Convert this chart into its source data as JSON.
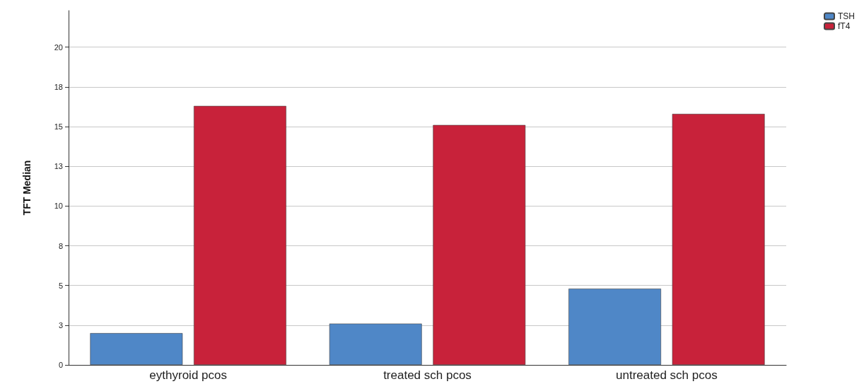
{
  "chart_data": {
    "type": "bar",
    "ylabel": "TFT Median",
    "categories": [
      "eythyroid pcos",
      "treated sch pcos",
      "untreated sch pcos"
    ],
    "series": [
      {
        "name": "TSH",
        "color": "#4f87c7",
        "values": [
          2.0,
          2.6,
          4.8
        ]
      },
      {
        "name": "fT4",
        "color": "#c8223a",
        "values": [
          16.3,
          15.1,
          15.8
        ]
      }
    ],
    "ylim": [
      0,
      22.3
    ],
    "yticks": [
      {
        "value": 0,
        "label": "0"
      },
      {
        "value": 2.5,
        "label": "3"
      },
      {
        "value": 5,
        "label": "5"
      },
      {
        "value": 7.5,
        "label": "8"
      },
      {
        "value": 10,
        "label": "10"
      },
      {
        "value": 12.5,
        "label": "13"
      },
      {
        "value": 15,
        "label": "15"
      },
      {
        "value": 17.5,
        "label": "18"
      },
      {
        "value": 20,
        "label": "20"
      }
    ],
    "grid": "y",
    "legend": "top right"
  }
}
